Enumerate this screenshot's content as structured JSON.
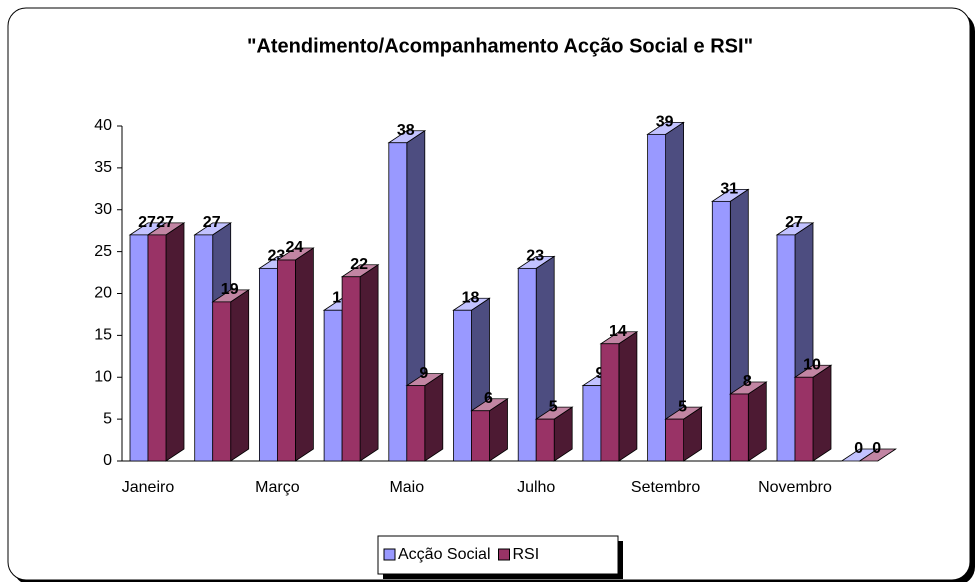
{
  "chart_data": {
    "type": "bar3d",
    "title": "\"Atendimento/Acompanhamento Acção Social e RSI\"",
    "categories": [
      "Janeiro",
      null,
      "Março",
      null,
      "Maio",
      null,
      "Julho",
      null,
      "Setembro",
      null,
      "Novembro",
      null
    ],
    "series": [
      {
        "name": "Acção Social",
        "color": "#9999ff",
        "values": [
          27,
          27,
          23,
          18,
          38,
          18,
          23,
          9,
          39,
          31,
          27,
          0
        ]
      },
      {
        "name": "RSI",
        "color": "#993366",
        "values": [
          27,
          19,
          24,
          22,
          9,
          6,
          5,
          14,
          5,
          8,
          10,
          0
        ]
      }
    ],
    "ylim": [
      0,
      40
    ],
    "yticks": [
      0,
      5,
      10,
      15,
      20,
      25,
      30,
      35,
      40
    ],
    "grid": false,
    "legend": "bottom"
  }
}
